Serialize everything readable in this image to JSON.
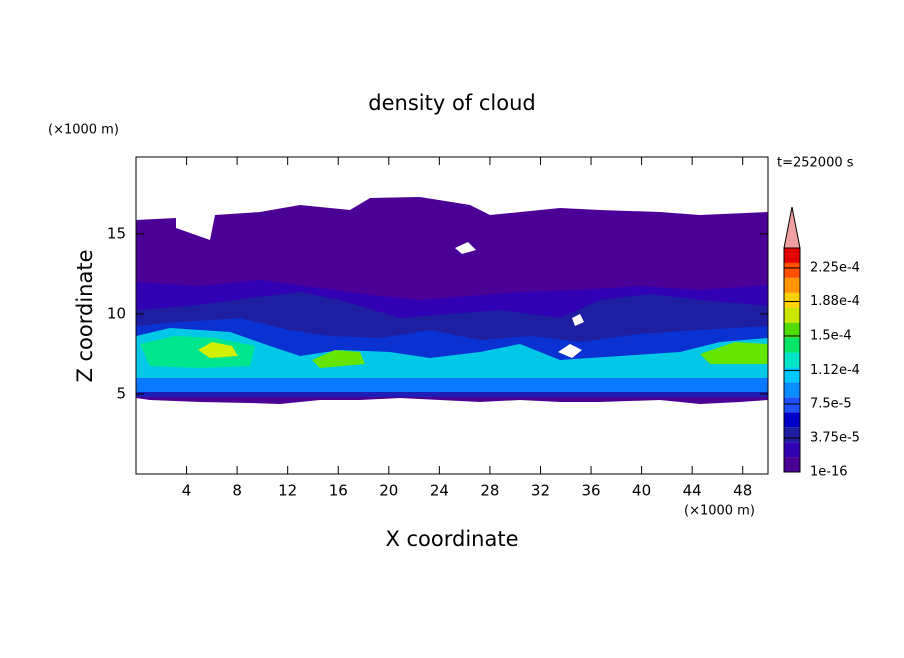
{
  "chart_data": {
    "type": "contourf",
    "title": "density of cloud",
    "subtitle": "t=252000 s",
    "xlabel": "X coordinate",
    "ylabel": "Z coordinate",
    "x_unit": "(×1000 m)",
    "y_unit": "(×1000 m)",
    "xlim": [
      0,
      50
    ],
    "xticks": [
      4,
      8,
      12,
      16,
      20,
      24,
      28,
      32,
      36,
      40,
      44,
      48
    ],
    "ylim": [
      0,
      19.8
    ],
    "yticks": [
      5,
      10,
      15
    ],
    "colorbar": {
      "lim": [
        1e-16,
        0.000247
      ],
      "ticks": [
        {
          "value": 1e-16,
          "label": "1e-16"
        },
        {
          "value": 3.75e-05,
          "label": "3.75e-5"
        },
        {
          "value": 7.5e-05,
          "label": "7.5e-5"
        },
        {
          "value": 0.000112,
          "label": "1.12e-4"
        },
        {
          "value": 0.00015,
          "label": "1.5e-4"
        },
        {
          "value": 0.000188,
          "label": "1.88e-4"
        },
        {
          "value": 0.000225,
          "label": "2.25e-4"
        }
      ],
      "colors": [
        "#4b0096",
        "#3200b4",
        "#1e1ea0",
        "#0000c8",
        "#1e50ff",
        "#0a8cff",
        "#00c8ff",
        "#00e6c8",
        "#00e664",
        "#50dc00",
        "#c8e600",
        "#ffd200",
        "#ff9600",
        "#ff5000",
        "#e60000"
      ],
      "extend_color": "#f0a0a0"
    }
  }
}
